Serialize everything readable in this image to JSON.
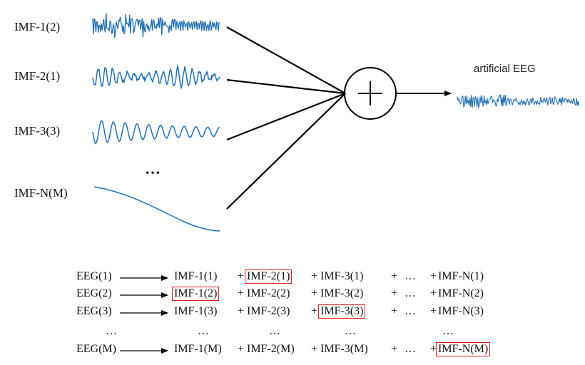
{
  "diagram": {
    "imf_labels": [
      "IMF-1(2)",
      "IMF-2(1)",
      "IMF-3(3)",
      "IMF-N(M)"
    ],
    "ellipsis": "…",
    "sum_symbol": "+",
    "output_label": "artificial EEG",
    "colors": {
      "signal": "#1f6fb5",
      "line": "#000000",
      "highlight": "#e02020"
    }
  },
  "equations": [
    {
      "lhs": "EEG(1)",
      "terms": [
        "IMF-1(1)",
        "IMF-2(1)",
        "IMF-3(1)",
        "…",
        "IMF-N(1)"
      ],
      "highlight": 1
    },
    {
      "lhs": "EEG(2)",
      "terms": [
        "IMF-1(2)",
        "IMF-2(2)",
        "IMF-3(2)",
        "…",
        "IMF-N(2)"
      ],
      "highlight": 0
    },
    {
      "lhs": "EEG(3)",
      "terms": [
        "IMF-1(3)",
        "IMF-2(3)",
        "IMF-3(3)",
        "…",
        "IMF-N(3)"
      ],
      "highlight": 2
    },
    {
      "lhs": "…",
      "terms": [
        "…",
        "…",
        "…",
        "…"
      ],
      "highlight": -1
    },
    {
      "lhs": "EEG(M)",
      "terms": [
        "IMF-1(M)",
        "IMF-2(M)",
        "IMF-3(M)",
        "…",
        "IMF-N(M)"
      ],
      "highlight": 4
    }
  ]
}
